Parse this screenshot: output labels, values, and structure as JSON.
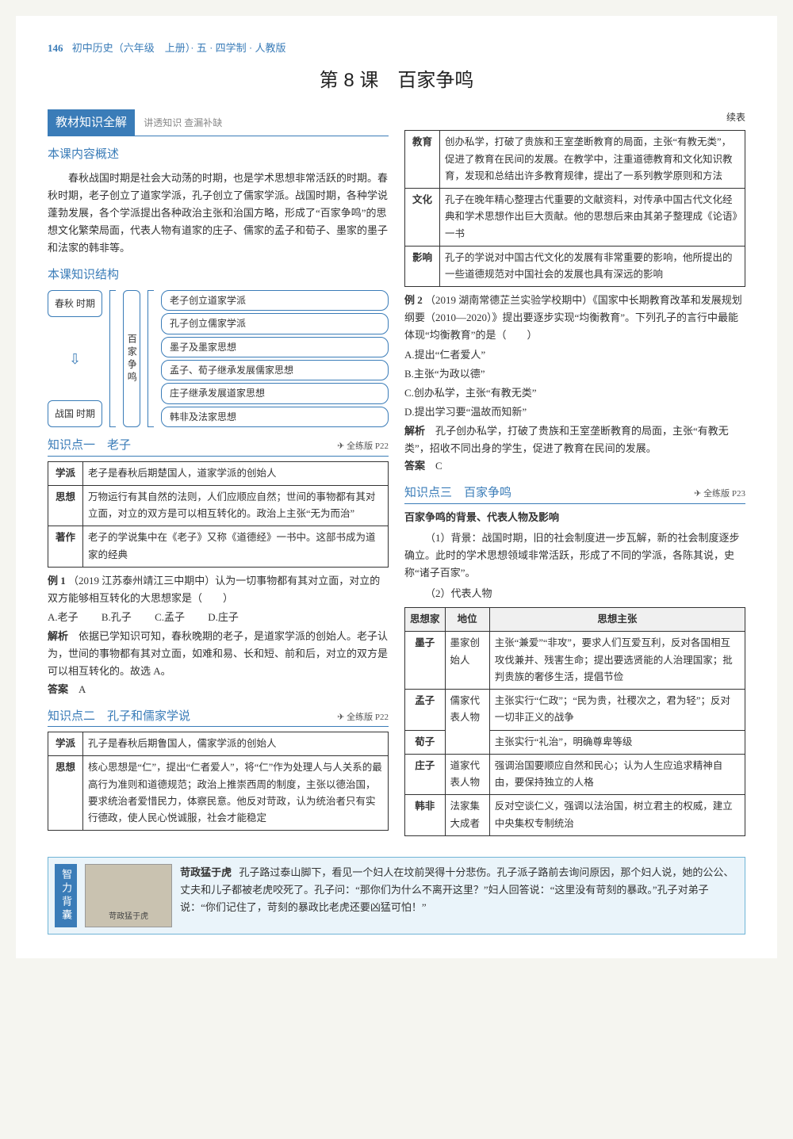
{
  "header": {
    "page_number": "146",
    "book_title": "初中历史（六年级　上册）· 五 · 四学制 · 人教版"
  },
  "lesson": {
    "title": "第 8 课　百家争鸣"
  },
  "banner": {
    "title": "教材知识全解",
    "subtitle": "讲透知识 查漏补缺"
  },
  "overview": {
    "heading": "本课内容概述",
    "text": "春秋战国时期是社会大动荡的时期，也是学术思想非常活跃的时期。春秋时期，老子创立了道家学派，孔子创立了儒家学派。战国时期，各种学说蓬勃发展，各个学派提出各种政治主张和治国方略，形成了“百家争鸣”的思想文化繁荣局面，代表人物有道家的庄子、儒家的孟子和荀子、墨家的墨子和法家的韩非等。"
  },
  "structure": {
    "heading": "本课知识结构",
    "left_top": "春秋\n时期",
    "left_bottom": "战国\n时期",
    "mid": "百家争鸣",
    "items": [
      "老子创立道家学派",
      "孔子创立儒家学派",
      "墨子及墨家思想",
      "孟子、荀子继承发展儒家思想",
      "庄子继承发展道家思想",
      "韩非及法家思想"
    ]
  },
  "kp1": {
    "title": "知识点一　老子",
    "ref": "全练版 P22",
    "rows": [
      {
        "label": "学派",
        "text": "老子是春秋后期楚国人，道家学派的创始人"
      },
      {
        "label": "思想",
        "text": "万物运行有其自然的法则，人们应顺应自然；世间的事物都有其对立面，对立的双方是可以相互转化的。政治上主张“无为而治”"
      },
      {
        "label": "著作",
        "text": "老子的学说集中在《老子》又称《道德经》一书中。这部书成为道家的经典"
      }
    ]
  },
  "ex1": {
    "label": "例 1",
    "source": "（2019 江苏泰州靖江三中期中）",
    "stem": "认为一切事物都有其对立面，对立的双方能够相互转化的大思想家是（　　）",
    "options": [
      "A.老子",
      "B.孔子",
      "C.孟子",
      "D.庄子"
    ],
    "analysis_label": "解析",
    "analysis": "依据已学知识可知，春秋晚期的老子，是道家学派的创始人。老子认为，世间的事物都有其对立面，如难和易、长和短、前和后，对立的双方是可以相互转化的。故选 A。",
    "answer_label": "答案",
    "answer": "A"
  },
  "kp2": {
    "title": "知识点二　孔子和儒家学说",
    "ref": "全练版 P22",
    "rows_left": [
      {
        "label": "学派",
        "text": "孔子是春秋后期鲁国人，儒家学派的创始人"
      },
      {
        "label": "思想",
        "text": "核心思想是“仁”，提出“仁者爱人”，将“仁”作为处理人与人关系的最高行为准则和道德规范；政治上推崇西周的制度，主张以德治国，要求统治者爱惜民力，体察民意。他反对苛政，认为统治者只有实行德政，使人民心悦诚服，社会才能稳定"
      }
    ],
    "continued_label": "续表",
    "rows_right": [
      {
        "label": "教育",
        "text": "创办私学，打破了贵族和王室垄断教育的局面，主张“有教无类”，促进了教育在民间的发展。在教学中，注重道德教育和文化知识教育，发现和总结出许多教育规律，提出了一系列教学原则和方法"
      },
      {
        "label": "文化",
        "text": "孔子在晚年精心整理古代重要的文献资料，对传承中国古代文化经典和学术思想作出巨大贡献。他的思想后来由其弟子整理成《论语》一书"
      },
      {
        "label": "影响",
        "text": "孔子的学说对中国古代文化的发展有非常重要的影响，他所提出的一些道德规范对中国社会的发展也具有深远的影响"
      }
    ]
  },
  "ex2": {
    "label": "例 2",
    "source": "（2019 湖南常德芷兰实验学校期中）",
    "stem": "《国家中长期教育改革和发展规划纲要（2010—2020）》提出要逐步实现“均衡教育”。下列孔子的言行中最能体现“均衡教育”的是（　　）",
    "options": [
      "A.提出“仁者爱人”",
      "B.主张“为政以德”",
      "C.创办私学，主张“有教无类”",
      "D.提出学习要“温故而知新”"
    ],
    "analysis_label": "解析",
    "analysis": "孔子创办私学，打破了贵族和王室垄断教育的局面，主张“有教无类”，招收不同出身的学生，促进了教育在民间的发展。",
    "answer_label": "答案",
    "answer": "C"
  },
  "kp3": {
    "title": "知识点三　百家争鸣",
    "ref": "全练版 P23",
    "subheading": "百家争鸣的背景、代表人物及影响",
    "bg_text": "（1）背景：战国时期，旧的社会制度进一步瓦解，新的社会制度逐步确立。此时的学术思想领域非常活跃，形成了不同的学派，各陈其说，史称“诸子百家”。",
    "rep_label": "（2）代表人物",
    "table_headers": [
      "思想家",
      "地位",
      "思想主张"
    ],
    "table_rows": [
      {
        "name": "墨子",
        "role": "墨家创始人",
        "idea": "主张“兼爱”“非攻”，要求人们互爱互利，反对各国相互攻伐兼并、残害生命；提出要选贤能的人治理国家；批判贵族的奢侈生活，提倡节俭"
      },
      {
        "name": "孟子",
        "role": "儒家代表人物",
        "idea": "主张实行“仁政”；“民为贵，社稷次之，君为轻”；反对一切非正义的战争"
      },
      {
        "name": "荀子",
        "role": "",
        "idea": "主张实行“礼治”，明确尊卑等级"
      },
      {
        "name": "庄子",
        "role": "道家代表人物",
        "idea": "强调治国要顺应自然和民心；认为人生应追求精神自由，要保持独立的人格"
      },
      {
        "name": "韩非",
        "role": "法家集大成者",
        "idea": "反对空谈仁义，强调以法治国，树立君主的权威，建立中央集权专制统治"
      }
    ]
  },
  "sidebar": {
    "tag": "智力背囊",
    "img_caption": "苛政猛于虎",
    "title": "苛政猛于虎",
    "text": "孔子路过泰山脚下，看见一个妇人在坟前哭得十分悲伤。孔子派子路前去询问原因，那个妇人说，她的公公、丈夫和儿子都被老虎咬死了。孔子问：“那你们为什么不离开这里？”妇人回答说：“这里没有苛刻的暴政。”孔子对弟子说：“你们记住了，苛刻的暴政比老虎还要凶猛可怕！”"
  },
  "colors": {
    "primary": "#3a7cb8",
    "sidebar_bg": "#eaf4fa",
    "sidebar_border": "#6fb4d6"
  }
}
